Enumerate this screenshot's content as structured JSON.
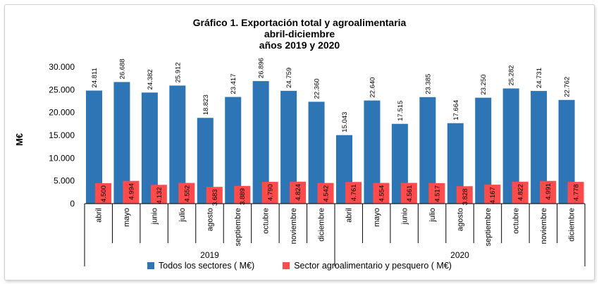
{
  "colors": {
    "series1": "#2e75b6",
    "series2": "#ff4b4b",
    "axis": "#000000"
  },
  "chart_data": {
    "type": "bar",
    "title": [
      "Gráfico 1. Exportación total y agroalimentaria",
      "abril-diciembre",
      "años 2019 y 2020"
    ],
    "ylabel": "M€",
    "ylim": [
      0,
      30000
    ],
    "yticks": [
      {
        "value": 0,
        "label": "0"
      },
      {
        "value": 5000,
        "label": "5.000"
      },
      {
        "value": 10000,
        "label": "10.000"
      },
      {
        "value": 15000,
        "label": "15.000"
      },
      {
        "value": 20000,
        "label": "20.000"
      },
      {
        "value": 25000,
        "label": "25.000"
      },
      {
        "value": 30000,
        "label": "30.000"
      }
    ],
    "groups": [
      {
        "label": "2019",
        "categories": [
          "abril",
          "mayo",
          "junio",
          "julio",
          "agosto",
          "septiembre",
          "octubre",
          "noviembre",
          "diciembre"
        ]
      },
      {
        "label": "2020",
        "categories": [
          "abril",
          "mayo",
          "junio",
          "julio",
          "agosto",
          "septiembre",
          "octubre",
          "noviembre",
          "diciembre"
        ]
      }
    ],
    "categories": [
      "abril",
      "mayo",
      "junio",
      "julio",
      "agosto",
      "septiembre",
      "octubre",
      "noviembre",
      "diciembre",
      "abril",
      "mayo",
      "junio",
      "julio",
      "agosto",
      "septiembre",
      "octubre",
      "noviembre",
      "diciembre"
    ],
    "series": [
      {
        "name": "Todos los sectores ( M€)",
        "values": [
          24811,
          26688,
          24382,
          25912,
          18823,
          23417,
          26896,
          24759,
          22360,
          15043,
          22640,
          17515,
          23385,
          17664,
          23250,
          25282,
          24731,
          22762
        ],
        "labels": [
          "24.811",
          "26.688",
          "24.382",
          "25.912",
          "18.823",
          "23.417",
          "26.896",
          "24.759",
          "22.360",
          "15.043",
          "22.640",
          "17.515",
          "23.385",
          "17.664",
          "23.250",
          "25.282",
          "24.731",
          "22.762"
        ]
      },
      {
        "name": "Sector agroalimentario y pesquero ( M€)",
        "values": [
          4500,
          4994,
          4132,
          4552,
          3683,
          3889,
          4790,
          4824,
          4542,
          4761,
          4554,
          4561,
          4517,
          3828,
          4167,
          4822,
          4991,
          4778
        ],
        "labels": [
          "4.500",
          "4.994",
          "4.132",
          "4.552",
          "3.683",
          "3.889",
          "4.790",
          "4.824",
          "4.542",
          "4.761",
          "4.554",
          "4.561",
          "4.517",
          "3.828",
          "4.167",
          "4.822",
          "4.991",
          "4.778"
        ]
      }
    ],
    "legend": "bottom",
    "grid": false
  }
}
